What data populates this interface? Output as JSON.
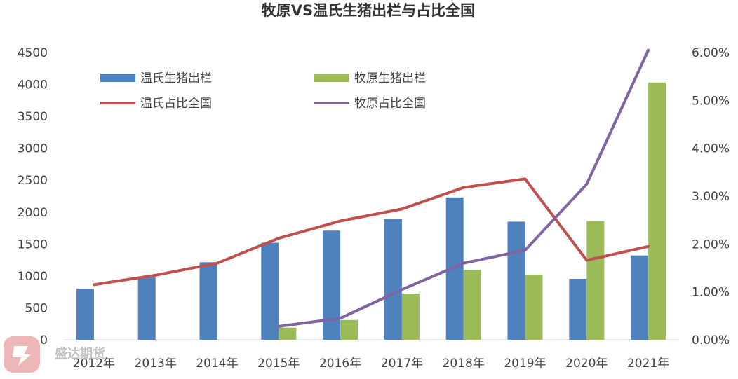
{
  "chart_data": {
    "type": "bar+line",
    "title": "牧原VS温氏生猪出栏与占比全国",
    "categories": [
      "2012年",
      "2013年",
      "2014年",
      "2015年",
      "2016年",
      "2017年",
      "2018年",
      "2019年",
      "2020年",
      "2021年"
    ],
    "bar_series": [
      {
        "name": "温氏生猪出栏",
        "color": "#4F81BD",
        "values": [
          800,
          985,
          1215,
          1520,
          1710,
          1890,
          2230,
          1850,
          955,
          1320
        ]
      },
      {
        "name": "牧原生猪出栏",
        "color": "#9BBB59",
        "values": [
          null,
          null,
          null,
          190,
          310,
          725,
          1095,
          1020,
          1860,
          4030
        ]
      }
    ],
    "line_series": [
      {
        "name": "温氏占比全国",
        "color": "#C0504D",
        "values": [
          0.0115,
          0.0135,
          0.016,
          0.0212,
          0.0248,
          0.0273,
          0.0318,
          0.0336,
          0.0166,
          0.0195
        ]
      },
      {
        "name": "牧原占比全国",
        "color": "#8064A2",
        "values": [
          null,
          null,
          null,
          0.0028,
          0.0045,
          0.0105,
          0.016,
          0.0187,
          0.0325,
          0.0605
        ]
      }
    ],
    "ylim_left": [
      0,
      4500
    ],
    "yticks_left": [
      "0",
      "500",
      "1000",
      "1500",
      "2000",
      "2500",
      "3000",
      "3500",
      "4000",
      "4500"
    ],
    "ylim_right": [
      0,
      0.06
    ],
    "yticks_right": [
      "0.00%",
      "1.00%",
      "2.00%",
      "3.00%",
      "4.00%",
      "5.00%",
      "6.00%"
    ],
    "grid": false,
    "legend_position": "top-left"
  },
  "watermark": {
    "text": "盛达期货",
    "color": "#E8A0A0"
  }
}
